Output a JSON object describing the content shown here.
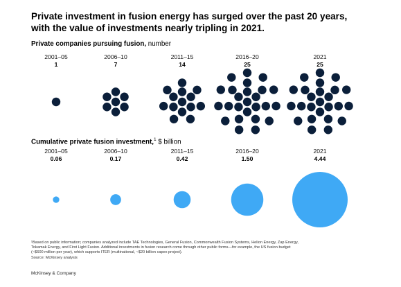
{
  "title_line1": "Private investment in fusion energy has surged over the past 20 years,",
  "title_line2": "with the value of investments nearly tripling in 2021.",
  "chart_data": [
    {
      "type": "scatter",
      "title": "Private companies pursuing fusion,",
      "unit": "number",
      "categories": [
        "2001–05",
        "2006–10",
        "2011–15",
        "2016–20",
        "2021"
      ],
      "values": [
        1,
        7,
        14,
        25,
        25
      ],
      "value_labels": [
        "1",
        "7",
        "14",
        "25",
        "25"
      ],
      "encoding": "dot-cluster",
      "color": "#0b1f3a"
    },
    {
      "type": "scatter",
      "title": "Cumulative private fusion investment,",
      "title_sup": "1",
      "unit": "$ billion",
      "categories": [
        "2001–05",
        "2006–10",
        "2011–15",
        "2016–20",
        "2021"
      ],
      "values": [
        0.06,
        0.17,
        0.42,
        1.5,
        4.44
      ],
      "value_labels": [
        "0.06",
        "0.17",
        "0.42",
        "1.50",
        "4.44"
      ],
      "encoding": "bubble-area",
      "color": "#3fa9f5"
    }
  ],
  "footnote_line1": "¹Based on public information; companies analyzed include TAE Technologies, General Fusion, Commonwealth Fusion Systems, Helion Energy, Zap Energy,",
  "footnote_line2": "Tokamak Energy, and First Light Fusion. Additional investments in fusion research come through other public forms—for example, the US fusion budget",
  "footnote_line3": "(~$600 million per year), which supports ITER (multinational, ~$20 billion capex project).",
  "footnote_line4": "Source: McKinsey analysis",
  "brand": "McKinsey & Company"
}
